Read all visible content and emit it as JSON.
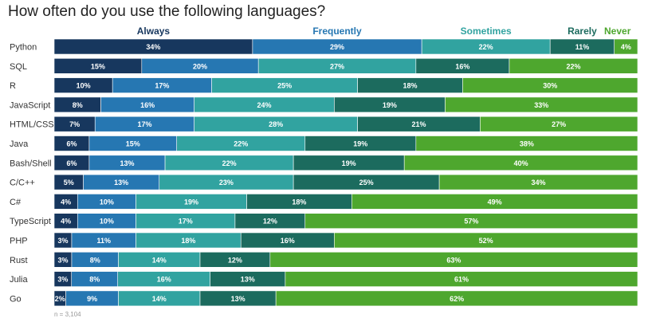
{
  "chart_data": {
    "type": "bar",
    "stacked": true,
    "orientation": "horizontal",
    "title": "How often do you use the following languages?",
    "note": "n = 3,104",
    "legend_position": "top",
    "categories": [
      "Python",
      "SQL",
      "R",
      "JavaScript",
      "HTML/CSS",
      "Java",
      "Bash/Shell",
      "C/C++",
      "C#",
      "TypeScript",
      "PHP",
      "Rust",
      "Julia",
      "Go"
    ],
    "series": [
      {
        "name": "Always",
        "color": "#17375e",
        "values": [
          34,
          15,
          10,
          8,
          7,
          6,
          6,
          5,
          4,
          4,
          3,
          3,
          3,
          2
        ]
      },
      {
        "name": "Frequently",
        "color": "#2677b2",
        "values": [
          29,
          20,
          17,
          16,
          17,
          15,
          13,
          13,
          10,
          10,
          11,
          8,
          8,
          9
        ]
      },
      {
        "name": "Sometimes",
        "color": "#31a3a0",
        "values": [
          22,
          27,
          25,
          24,
          28,
          22,
          22,
          23,
          19,
          17,
          18,
          14,
          16,
          14
        ]
      },
      {
        "name": "Rarely",
        "color": "#1c6b5e",
        "values": [
          11,
          16,
          18,
          19,
          21,
          19,
          19,
          25,
          18,
          12,
          16,
          12,
          13,
          13
        ]
      },
      {
        "name": "Never",
        "color": "#4ea72e",
        "values": [
          4,
          22,
          30,
          33,
          27,
          38,
          40,
          34,
          49,
          57,
          52,
          63,
          61,
          62
        ]
      }
    ],
    "legend_text_colors": [
      "#17375e",
      "#2677b2",
      "#31a3a0",
      "#1c6b5e",
      "#4ea72e"
    ]
  }
}
